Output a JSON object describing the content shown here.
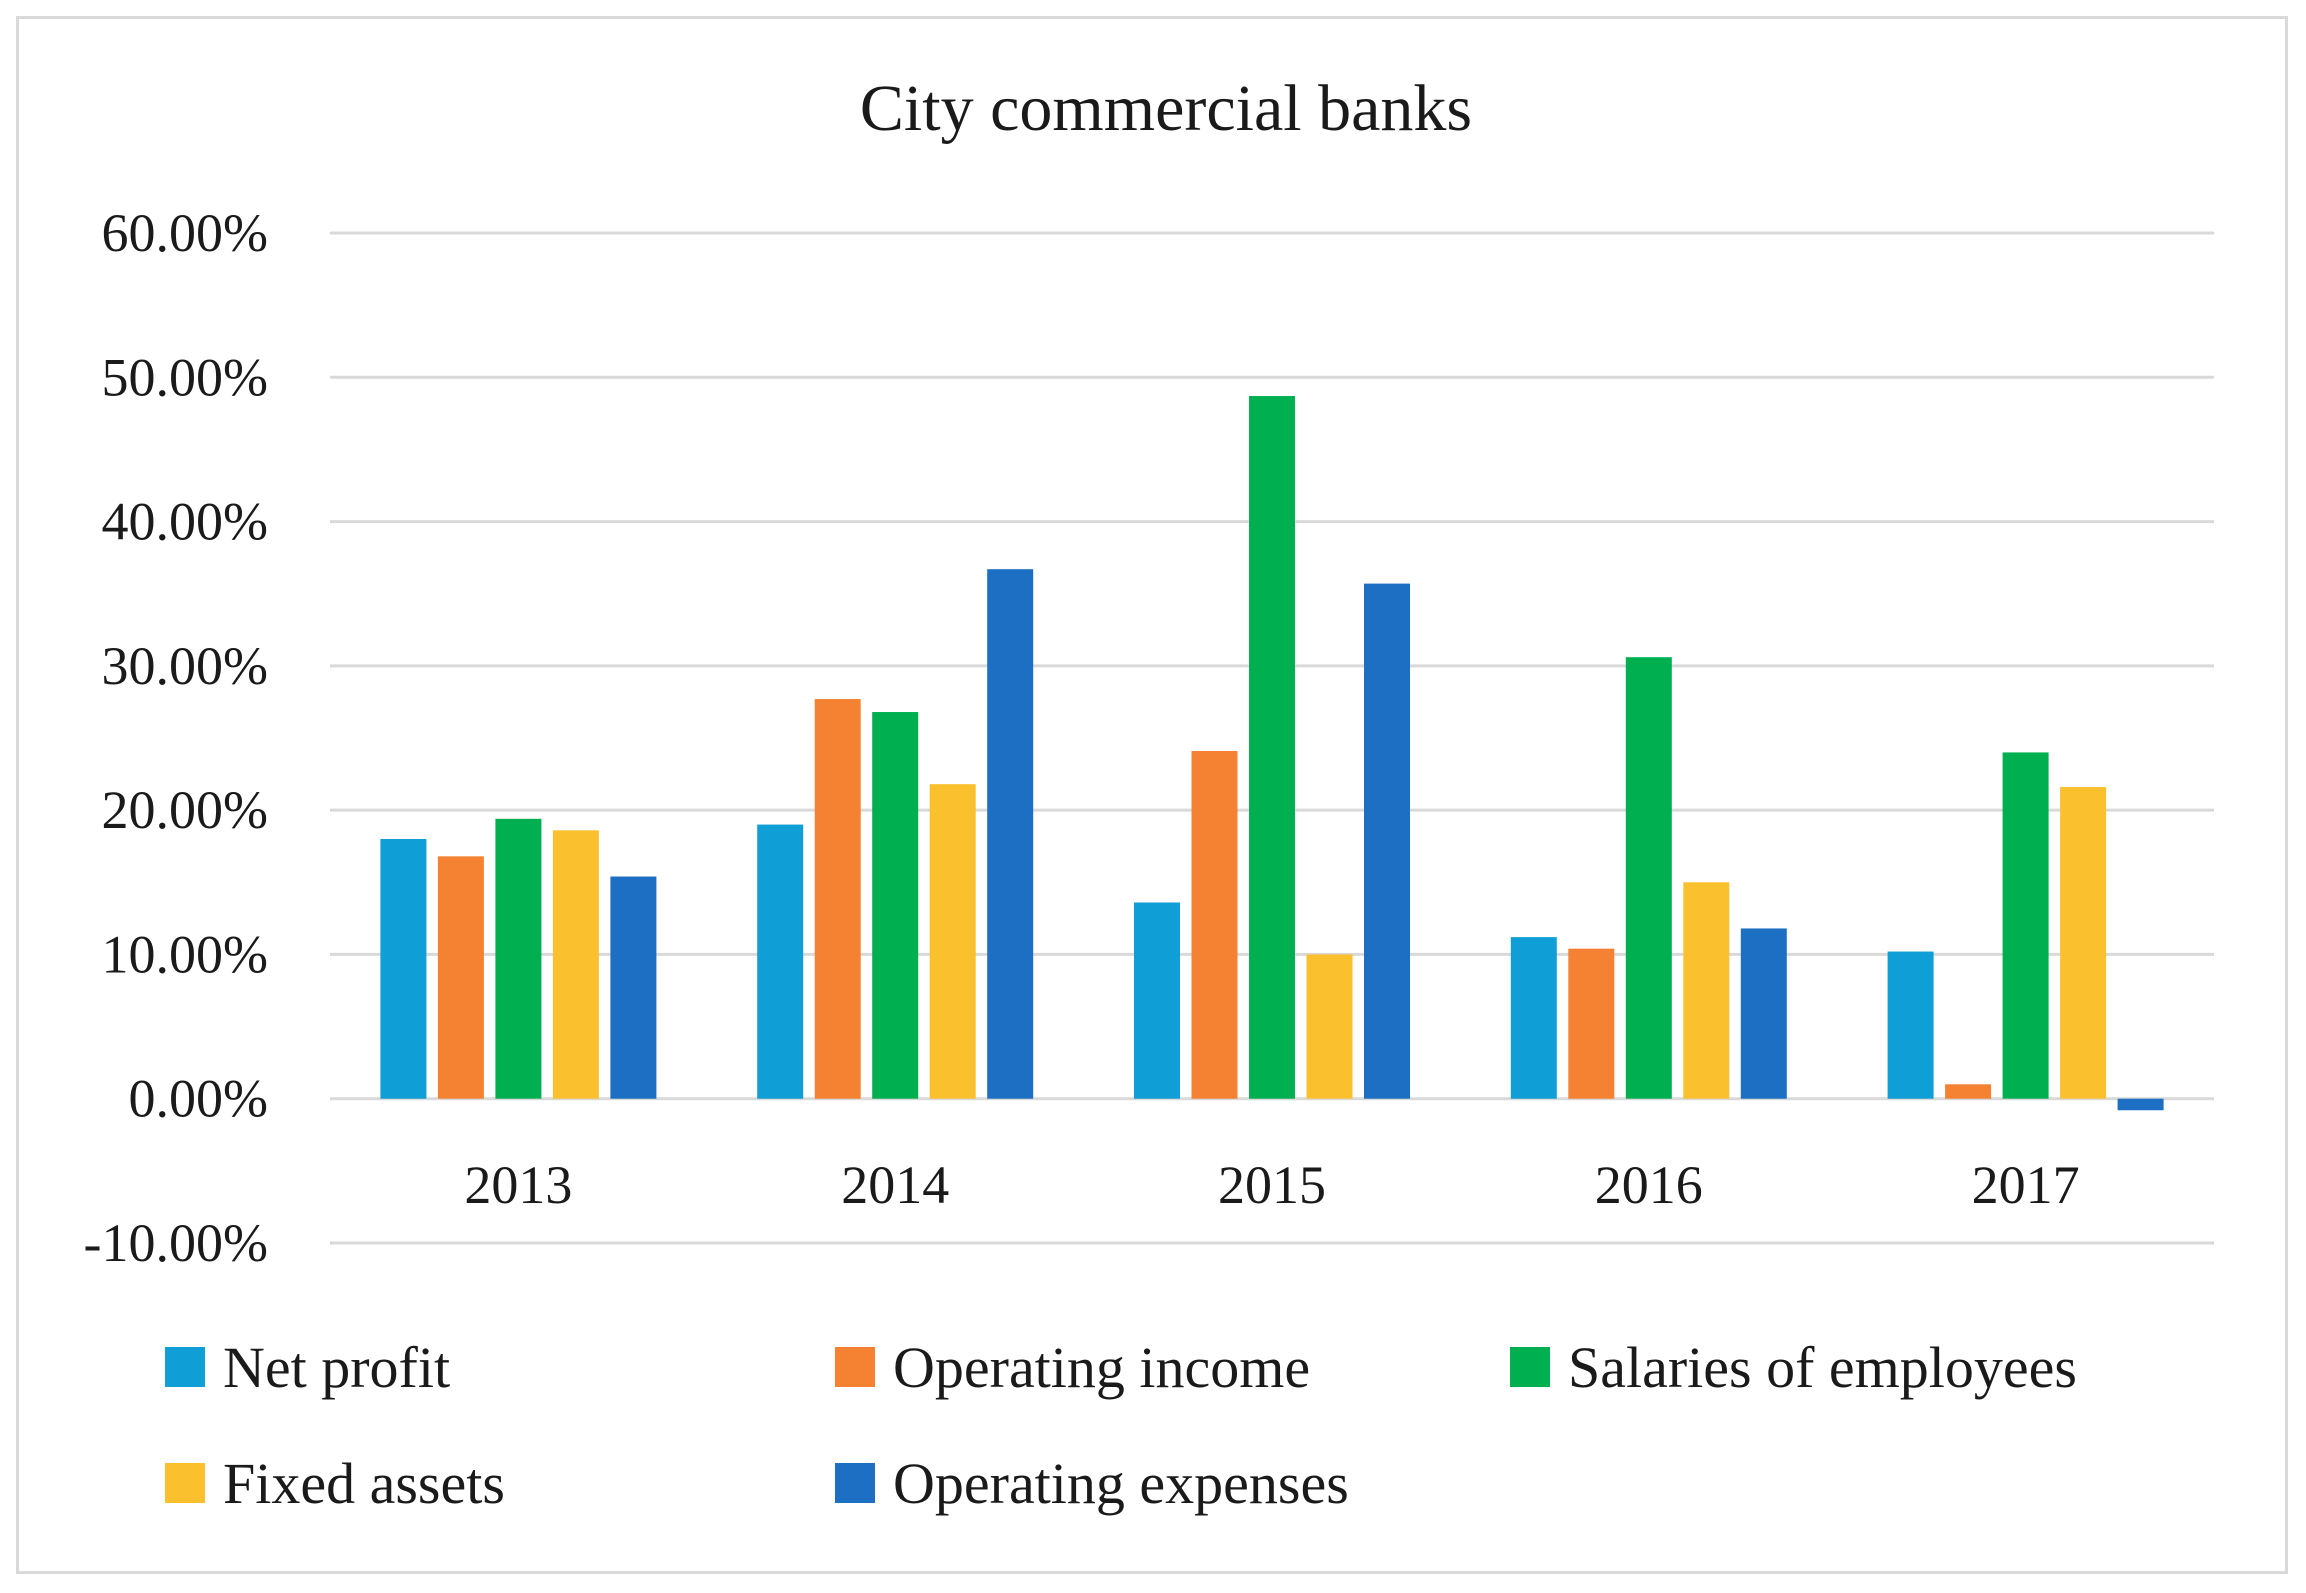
{
  "chart_data": {
    "type": "bar",
    "title": "City commercial banks",
    "xlabel": "",
    "ylabel": "",
    "ylim": [
      -10,
      60
    ],
    "y_tick_step": 10,
    "y_tick_labels": [
      "-10.00%",
      "0.00%",
      "10.00%",
      "20.00%",
      "30.00%",
      "40.00%",
      "50.00%",
      "60.00%"
    ],
    "grid": true,
    "legend_position": "bottom",
    "categories": [
      "2013",
      "2014",
      "2015",
      "2016",
      "2017"
    ],
    "series": [
      {
        "name": "Net profit",
        "color": "#0f9ed5",
        "values": [
          18.0,
          19.0,
          13.6,
          11.2,
          10.2
        ]
      },
      {
        "name": "Operating income",
        "color": "#f58233",
        "values": [
          16.8,
          27.7,
          24.1,
          10.4,
          1.0
        ]
      },
      {
        "name": "Salaries of employees",
        "color": "#00b050",
        "values": [
          19.4,
          26.8,
          48.7,
          30.6,
          24.0
        ]
      },
      {
        "name": "Fixed assets",
        "color": "#fbc02d",
        "values": [
          18.6,
          21.8,
          10.0,
          15.0,
          21.6
        ]
      },
      {
        "name": "Operating expenses",
        "color": "#1d6fc4",
        "values": [
          15.4,
          36.7,
          35.7,
          11.8,
          -0.8
        ]
      }
    ]
  }
}
